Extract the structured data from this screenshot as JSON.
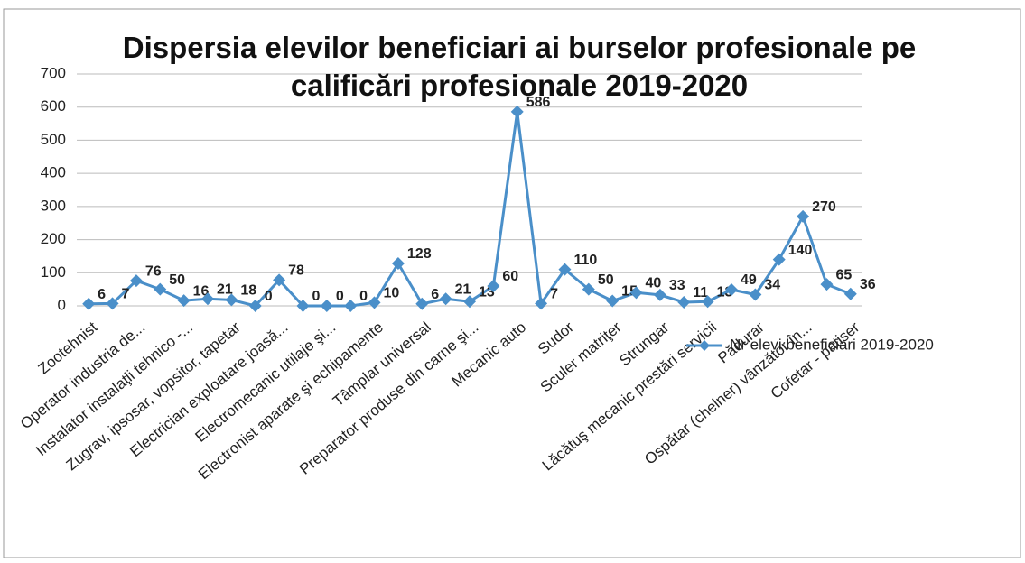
{
  "chart_data": {
    "type": "line",
    "title": "Dispersia elevilor beneficiari ai burselor profesionale pe calificări profesionale 2019-2020",
    "categories": [
      "Zootehnist",
      null,
      "Operator industria de...",
      null,
      "Instalator instalaţii tehnico -...",
      null,
      "Zugrav, ipsosar, vopsitor, tapetar",
      null,
      "Electrician exploatare joasă...",
      null,
      "Electromecanic utilaje şi...",
      null,
      "Electronist aparate şi echipamente",
      null,
      "Tâmplar universal",
      null,
      "Preparator produse din carne şi...",
      null,
      "Mecanic auto",
      null,
      "Sudor",
      null,
      "Sculer matriţer",
      null,
      "Strungar",
      null,
      "Lăcătuş mecanic prestări servicii",
      null,
      "Pădurar",
      null,
      "Ospătar (chelner) vânzător în...",
      null,
      "Cofetar - patiser"
    ],
    "series": [
      {
        "name": "Nr elevi beneficiari 2019-2020",
        "color": "#4a8fc9",
        "values": [
          6,
          7,
          76,
          50,
          16,
          21,
          18,
          0,
          78,
          0,
          0,
          0,
          10,
          128,
          6,
          21,
          13,
          60,
          586,
          7,
          110,
          50,
          15,
          40,
          33,
          11,
          13,
          49,
          34,
          140,
          270,
          65,
          36
        ]
      }
    ],
    "ylim": [
      0,
      700
    ],
    "yticks": [
      0,
      100,
      200,
      300,
      400,
      500,
      600,
      700
    ],
    "grid": true,
    "legend": "right"
  }
}
